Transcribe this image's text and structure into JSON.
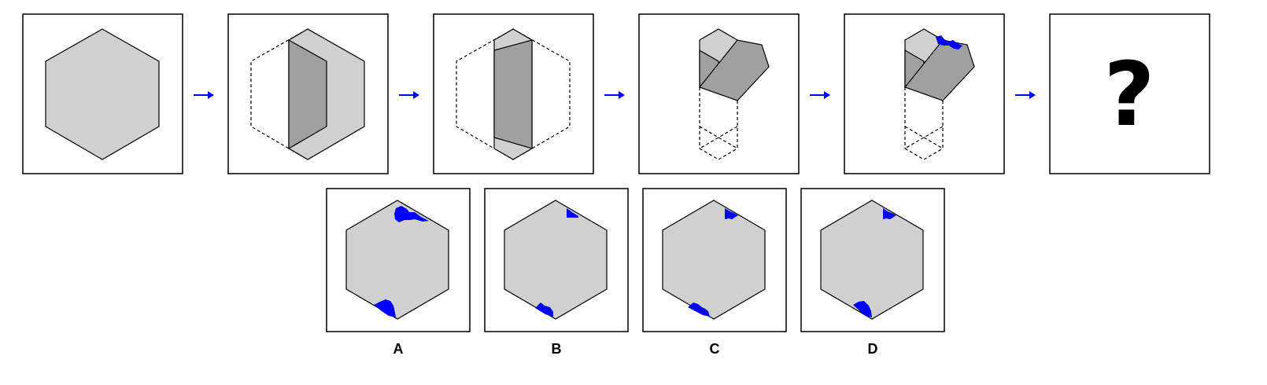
{
  "puzzle": {
    "question_mark": "?",
    "options": [
      {
        "label": "A"
      },
      {
        "label": "B"
      },
      {
        "label": "C"
      },
      {
        "label": "D"
      }
    ]
  },
  "colors": {
    "paper_fill": "#d0d0d0",
    "folded_fill": "#a0a0a0",
    "cut_mark": "#0000ff",
    "arrow": "#0000ff",
    "stroke": "#000000"
  },
  "icons": {
    "arrow": "right-arrow-icon"
  }
}
